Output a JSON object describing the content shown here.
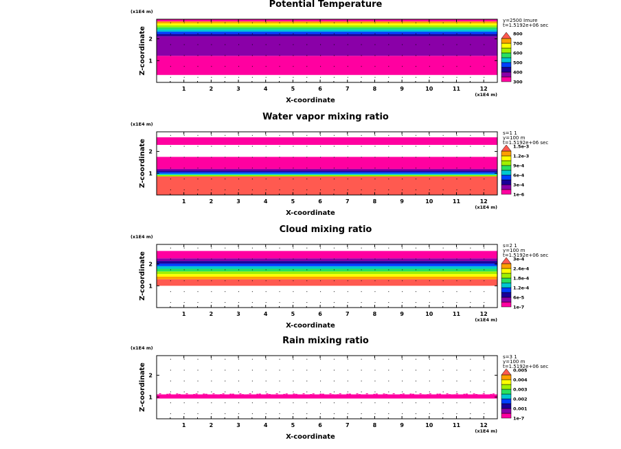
{
  "chart_data": [
    {
      "type": "heatmap",
      "title": "Potential Temperature",
      "xlabel": "X-coordinate",
      "ylabel": "Z-coordinate",
      "x_unit": "(x1E4 m)",
      "z_unit": "(x1E4 m)",
      "xlim": [
        0,
        12.5
      ],
      "zlim": [
        0,
        2.9
      ],
      "x_ticks": [
        "1",
        "2",
        "3",
        "4",
        "5",
        "6",
        "7",
        "8",
        "9",
        "10",
        "11",
        "12"
      ],
      "z_ticks": [
        "1",
        "2"
      ],
      "info": [
        "y=2500 Imure",
        "t=1.5192e+06 sec"
      ],
      "colorbar": {
        "colors": [
          "#ff00a0",
          "#8a00a8",
          "#1a0098",
          "#0040ff",
          "#00c8d0",
          "#28e060",
          "#a0f000",
          "#ffff00",
          "#ffa000",
          "#ff5a50"
        ],
        "labels": [
          "300",
          "400",
          "500",
          "600",
          "700",
          "800"
        ],
        "extend": "max"
      },
      "bands": [
        {
          "z0": 0.0,
          "z1": 0.34,
          "color": "#ffffff"
        },
        {
          "z0": 0.34,
          "z1": 1.22,
          "color": "#ff00a0"
        },
        {
          "z0": 1.22,
          "z1": 2.12,
          "color": "#8a00a8"
        },
        {
          "z0": 2.12,
          "z1": 2.22,
          "color": "#1a0098"
        },
        {
          "z0": 2.22,
          "z1": 2.33,
          "color": "#0040ff"
        },
        {
          "z0": 2.33,
          "z1": 2.43,
          "color": "#00c8d0"
        },
        {
          "z0": 2.43,
          "z1": 2.53,
          "color": "#28e060"
        },
        {
          "z0": 2.53,
          "z1": 2.62,
          "color": "#a0f000"
        },
        {
          "z0": 2.62,
          "z1": 2.71,
          "color": "#ffff00"
        },
        {
          "z0": 2.71,
          "z1": 2.8,
          "color": "#ffa000"
        },
        {
          "z0": 2.8,
          "z1": 2.9,
          "color": "#ff00a0"
        }
      ]
    },
    {
      "type": "heatmap",
      "title": "Water vapor mixing ratio",
      "xlabel": "X-coordinate",
      "ylabel": "Z-coordinate",
      "x_unit": "(x1E4 m)",
      "z_unit": "(x1E4 m)",
      "xlim": [
        0,
        12.5
      ],
      "zlim": [
        0,
        2.9
      ],
      "x_ticks": [
        "1",
        "2",
        "3",
        "4",
        "5",
        "6",
        "7",
        "8",
        "9",
        "10",
        "11",
        "12"
      ],
      "z_ticks": [
        "1",
        "2"
      ],
      "info": [
        "s=1 1",
        "y=100 m",
        "t=1.5192e+06 sec"
      ],
      "colorbar": {
        "colors": [
          "#ff00a0",
          "#8a00a8",
          "#1a0098",
          "#0040ff",
          "#00c8d0",
          "#28e060",
          "#a0f000",
          "#ffff00",
          "#ffa000",
          "#ff5a50"
        ],
        "labels": [
          "1e-6",
          "3e-4",
          "6e-4",
          "9e-4",
          "1.2e-3",
          "1.5e-3"
        ],
        "extend": "max"
      },
      "bands": [
        {
          "z0": 0.0,
          "z1": 0.85,
          "color": "#ff5a50"
        },
        {
          "z0": 0.85,
          "z1": 0.92,
          "color": "#a0f000"
        },
        {
          "z0": 0.92,
          "z1": 0.98,
          "color": "#00c8d0"
        },
        {
          "z0": 0.98,
          "z1": 1.05,
          "color": "#0040ff"
        },
        {
          "z0": 1.05,
          "z1": 1.12,
          "color": "#1a0098"
        },
        {
          "z0": 1.12,
          "z1": 1.2,
          "color": "#8a00a8"
        },
        {
          "z0": 1.2,
          "z1": 1.75,
          "color": "#ff00a0"
        },
        {
          "z0": 1.75,
          "z1": 2.3,
          "color": "#ffffff"
        },
        {
          "z0": 2.3,
          "z1": 2.65,
          "color": "#ff00a0"
        },
        {
          "z0": 2.65,
          "z1": 2.9,
          "color": "#ffffff"
        }
      ]
    },
    {
      "type": "heatmap",
      "title": "Cloud mixing ratio",
      "xlabel": "X-coordinate",
      "ylabel": "Z-coordinate",
      "x_unit": "(x1E4 m)",
      "z_unit": "(x1E4 m)",
      "xlim": [
        0,
        12.5
      ],
      "zlim": [
        0,
        2.9
      ],
      "x_ticks": [
        "1",
        "2",
        "3",
        "4",
        "5",
        "6",
        "7",
        "8",
        "9",
        "10",
        "11",
        "12"
      ],
      "z_ticks": [
        "1",
        "2"
      ],
      "info": [
        "s=2 1",
        "y=100 m",
        "t=1.5192e+06 sec"
      ],
      "colorbar": {
        "colors": [
          "#ff00a0",
          "#8a00a8",
          "#1a0098",
          "#0040ff",
          "#00c8d0",
          "#28e060",
          "#a0f000",
          "#ffff00",
          "#ffa000",
          "#ff5a50"
        ],
        "labels": [
          "1e-7",
          "6e-5",
          "1.2e-4",
          "1.8e-4",
          "2.4e-4",
          "3e-4"
        ],
        "extend": "max"
      },
      "bands": [
        {
          "z0": 0.0,
          "z1": 1.0,
          "color": "#ffffff"
        },
        {
          "z0": 1.0,
          "z1": 1.3,
          "color": "#ff5a50"
        },
        {
          "z0": 1.3,
          "z1": 1.42,
          "color": "#ffa000"
        },
        {
          "z0": 1.42,
          "z1": 1.54,
          "color": "#ffff00"
        },
        {
          "z0": 1.54,
          "z1": 1.66,
          "color": "#a0f000"
        },
        {
          "z0": 1.66,
          "z1": 1.78,
          "color": "#28e060"
        },
        {
          "z0": 1.78,
          "z1": 1.9,
          "color": "#00c8d0"
        },
        {
          "z0": 1.9,
          "z1": 2.02,
          "color": "#0040ff"
        },
        {
          "z0": 2.02,
          "z1": 2.14,
          "color": "#1a0098"
        },
        {
          "z0": 2.14,
          "z1": 2.26,
          "color": "#8a00a8"
        },
        {
          "z0": 2.26,
          "z1": 2.6,
          "color": "#ff00a0"
        },
        {
          "z0": 2.6,
          "z1": 2.9,
          "color": "#ffffff"
        }
      ]
    },
    {
      "type": "heatmap",
      "title": "Rain mixing ratio",
      "xlabel": "X-coordinate",
      "ylabel": "Z-coordinate",
      "x_unit": "(x1E4 m)",
      "z_unit": "(x1E4 m)",
      "xlim": [
        0,
        12.5
      ],
      "zlim": [
        0,
        2.9
      ],
      "x_ticks": [
        "1",
        "2",
        "3",
        "4",
        "5",
        "6",
        "7",
        "8",
        "9",
        "10",
        "11",
        "12"
      ],
      "z_ticks": [
        "1",
        "2"
      ],
      "info": [
        "s=3 1",
        "y=100 m",
        "t=1.5192e+06 sec"
      ],
      "colorbar": {
        "colors": [
          "#ff00a0",
          "#8a00a8",
          "#1a0098",
          "#0040ff",
          "#00c8d0",
          "#28e060",
          "#a0f000",
          "#ffff00",
          "#ffa000",
          "#ff5a50"
        ],
        "labels": [
          "1e-7",
          "0.001",
          "0.002",
          "0.003",
          "0.004",
          "0.005"
        ],
        "extend": "max"
      },
      "bands": [
        {
          "z0": 0.93,
          "z1": 1.12,
          "color": "#ff00a0"
        }
      ]
    }
  ]
}
